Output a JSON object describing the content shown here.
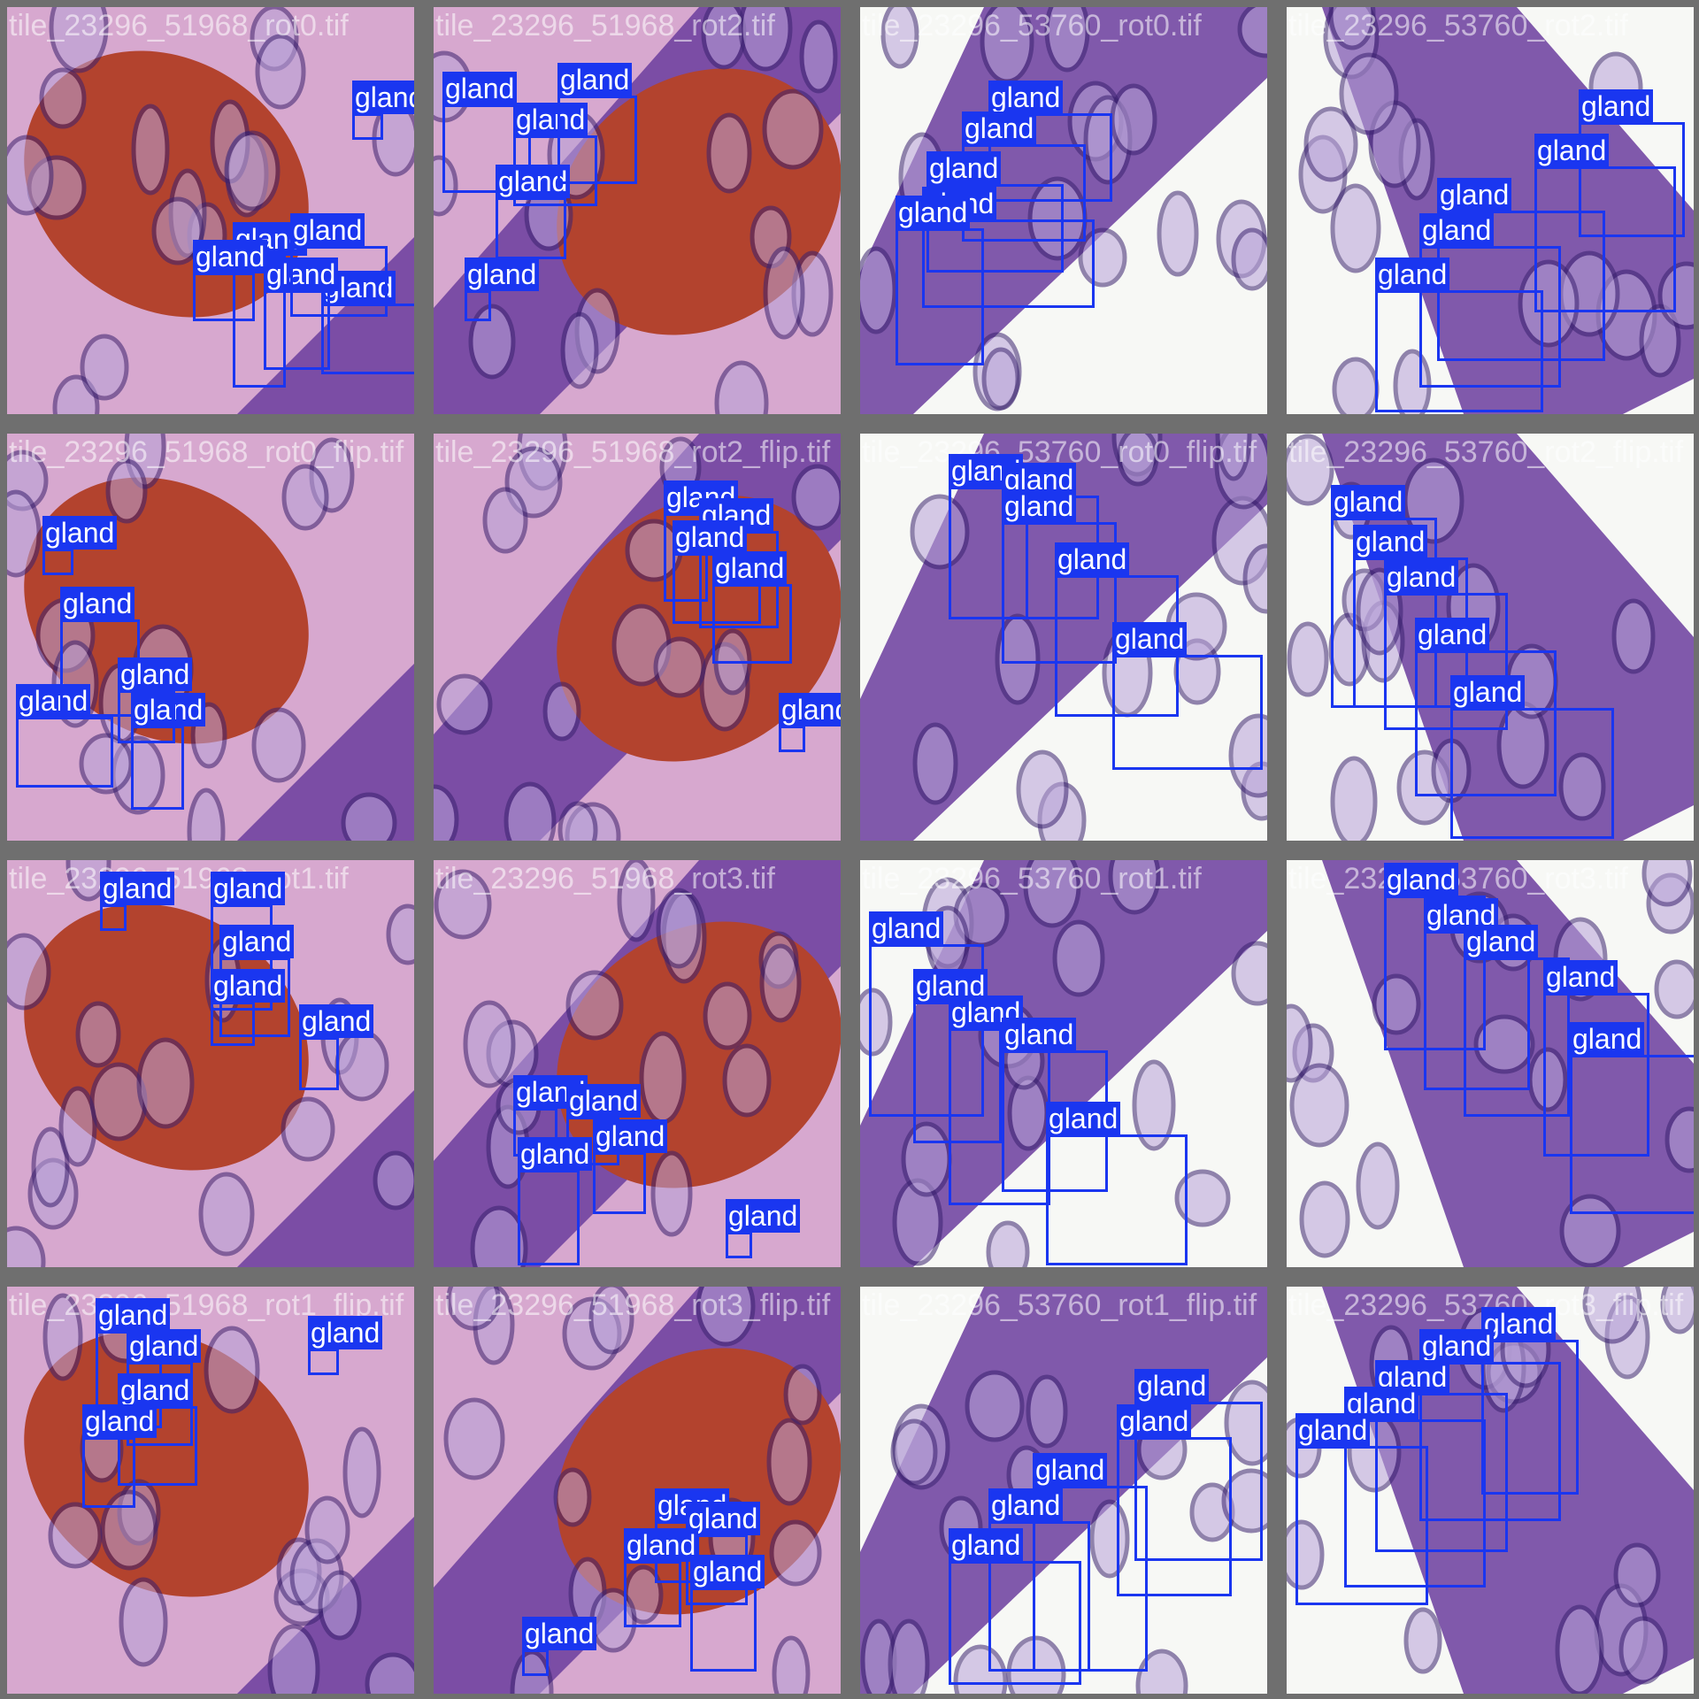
{
  "palette": {
    "frame": "#6f6f6f",
    "box": "#1a36f0",
    "label_text": "#ffffff",
    "blood": "#b3432e",
    "mucosa": "#6b3d9e",
    "stroma": "#d7a8cf",
    "background": "#f7f8f5"
  },
  "label": "gland",
  "tiles": [
    {
      "title": "tile_23296_51968_rot0.tif",
      "view": "rot0",
      "gland_count": 6
    },
    {
      "title": "tile_23296_51968_rot2.tif",
      "view": "rot2",
      "gland_count": 5
    },
    {
      "title": "tile_23296_53760_rot0.tif",
      "view": "rot0",
      "gland_count": 5
    },
    {
      "title": "tile_23296_53760_rot2.tif",
      "view": "rot2",
      "gland_count": 5
    },
    {
      "title": "tile_23296_51968_rot0_flip.tif",
      "view": "rot0_flip",
      "gland_count": 5
    },
    {
      "title": "tile_23296_51968_rot2_flip.tif",
      "view": "rot2_flip",
      "gland_count": 5
    },
    {
      "title": "tile_23296_53760_rot0_flip.tif",
      "view": "rot0_flip",
      "gland_count": 5
    },
    {
      "title": "tile_23296_53760_rot2_flip.tif",
      "view": "rot2_flip",
      "gland_count": 5
    },
    {
      "title": "tile_23296_51968_rot1.tif",
      "view": "rot1",
      "gland_count": 5
    },
    {
      "title": "tile_23296_51968_rot3.tif",
      "view": "rot3",
      "gland_count": 5
    },
    {
      "title": "tile_23296_53760_rot1.tif",
      "view": "rot1",
      "gland_count": 5
    },
    {
      "title": "tile_23296_53760_rot3.tif",
      "view": "rot3",
      "gland_count": 5
    },
    {
      "title": "tile_23296_51968_rot1_flip.tif",
      "view": "rot1_flip",
      "gland_count": 5
    },
    {
      "title": "tile_23296_51968_rot3_flip.tif",
      "view": "rot3_flip",
      "gland_count": 5
    },
    {
      "title": "tile_23296_53760_rot1_flip.tif",
      "view": "rot1_flip",
      "gland_count": 5
    },
    {
      "title": "tile_23296_53760_rot3_flip.tif",
      "view": "rot3_flip",
      "gland_count": 5
    }
  ]
}
